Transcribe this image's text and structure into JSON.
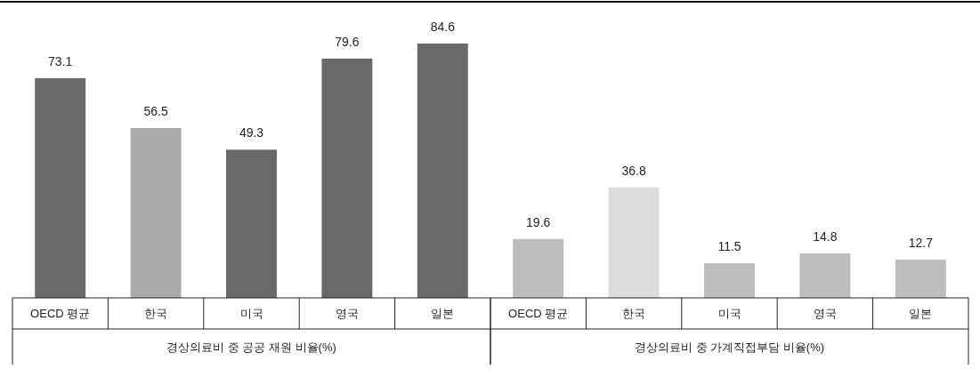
{
  "chart_data": [
    {
      "type": "bar",
      "xlabel": "경상의료비 중 공공 재원 비율(%)",
      "categories": [
        "OECD 평균",
        "한국",
        "미국",
        "영국",
        "일본"
      ],
      "values": [
        73.1,
        56.5,
        49.3,
        79.6,
        84.6
      ],
      "colors": [
        "#68696b",
        "#a9aaac",
        "#68696b",
        "#68696b",
        "#68696b"
      ],
      "data_labels": true
    },
    {
      "type": "bar",
      "xlabel": "경상의료비 중 가계직접부담 비율(%)",
      "categories": [
        "OECD 평균",
        "한국",
        "미국",
        "영국",
        "일본"
      ],
      "values": [
        19.6,
        36.8,
        11.5,
        14.8,
        12.7
      ],
      "colors": [
        "#bcbdbf",
        "#dcdcdd",
        "#bcbdbf",
        "#bcbdbf",
        "#bcbdbf"
      ],
      "data_labels": true
    }
  ]
}
